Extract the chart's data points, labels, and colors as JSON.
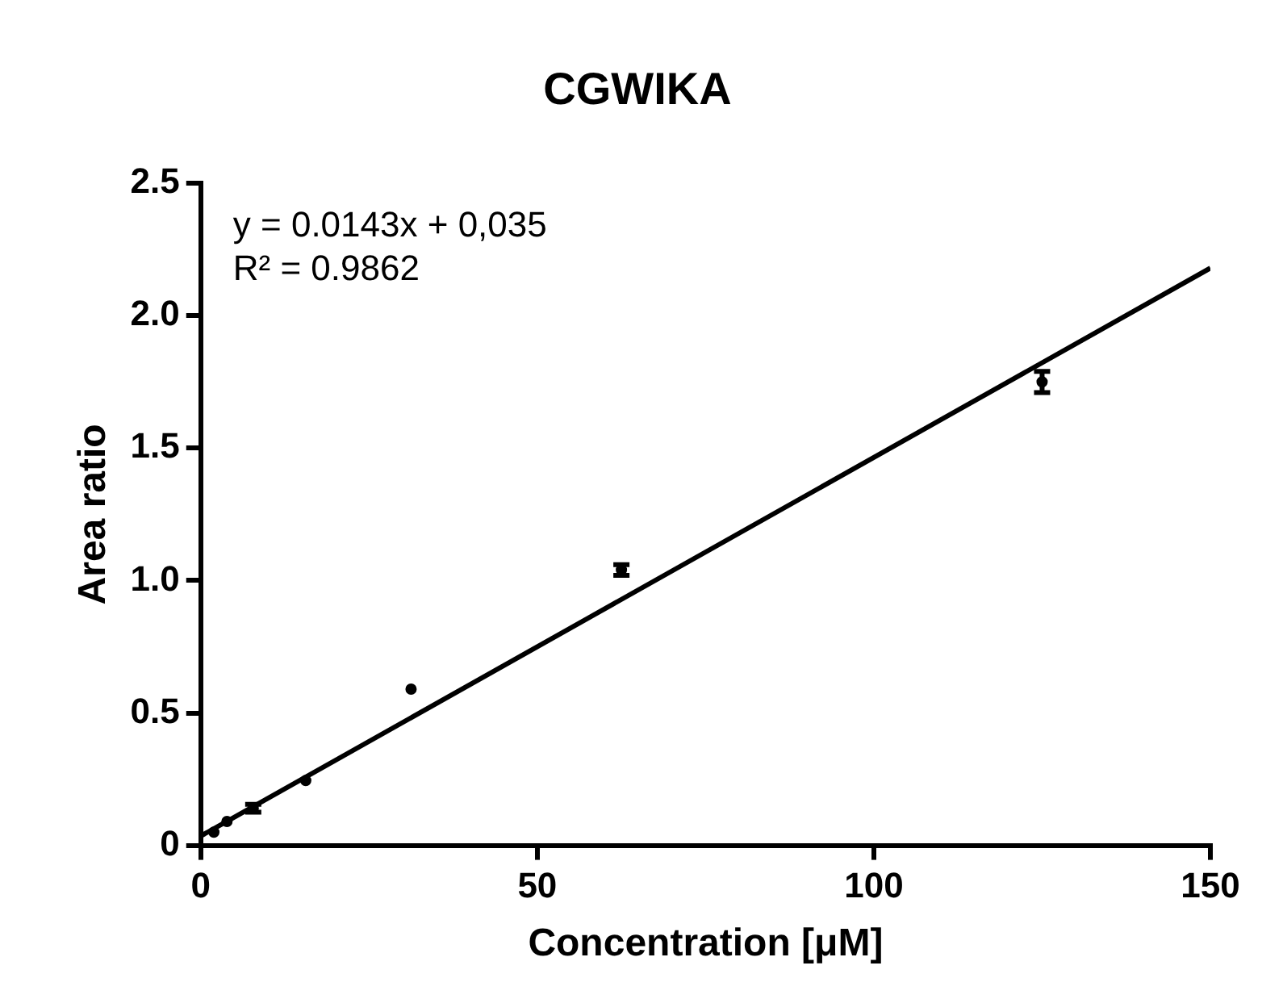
{
  "chart_data": {
    "type": "scatter",
    "title": "CGWIKA",
    "xlabel": "Concentration [μM]",
    "ylabel": "Area ratio",
    "annotations": [
      "y = 0.0143x + 0,035",
      "R² = 0.9862"
    ],
    "xlim": [
      0,
      150
    ],
    "xticks": [
      0,
      50,
      100,
      150
    ],
    "ylim": [
      0,
      2.5
    ],
    "yticks": [
      0.0,
      {
        "value": 0.5,
        "label": "0.5"
      },
      {
        "value": 1,
        "label": "1.0"
      },
      {
        "value": 1.5,
        "label": "1.5"
      },
      {
        "value": 2,
        "label": "2.0"
      },
      {
        "value": 2.5,
        "label": "2.5"
      }
    ],
    "grid": false,
    "legend": false,
    "marker": "circle",
    "series": [
      {
        "color": "#000000",
        "x": [
          1.95,
          3.9,
          7.8,
          15.6,
          31.25,
          62.5,
          125
        ],
        "values": [
          0.05,
          0.09,
          0.14,
          0.245,
          0.59,
          1.04,
          1.75
        ],
        "errors": [
          null,
          null,
          0.015,
          null,
          null,
          0.02,
          0.04
        ]
      },
      {
        "type": "line",
        "color": "#000000",
        "marker": "none",
        "line_style": "solid",
        "x": [
          0,
          150
        ],
        "values": [
          0.035,
          2.18
        ]
      }
    ]
  }
}
